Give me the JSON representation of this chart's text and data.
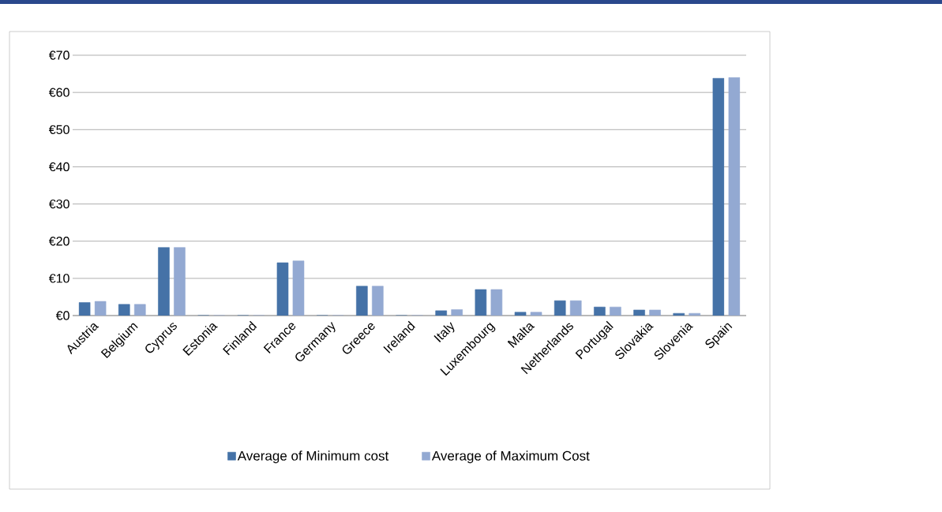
{
  "chart_data": {
    "type": "bar",
    "categories": [
      "Austria",
      "Belgium",
      "Cyprus",
      "Estonia",
      "Finland",
      "France",
      "Germany",
      "Greece",
      "Ireland",
      "Italy",
      "Luxembourg",
      "Malta",
      "Netherlands",
      "Portugal",
      "Slovakia",
      "Slovenia",
      "Spain"
    ],
    "series": [
      {
        "name": "Average of Minimum cost",
        "color": "#4572a7",
        "values": [
          3.5,
          3.0,
          18.3,
          0,
          0,
          14.2,
          0,
          7.9,
          0,
          1.3,
          7.0,
          0.9,
          4.0,
          2.3,
          1.5,
          0.6,
          63.8
        ]
      },
      {
        "name": "Average of  Maximum Cost",
        "color": "#93a9d2",
        "values": [
          3.8,
          3.0,
          18.3,
          0,
          0,
          14.7,
          0,
          7.9,
          0,
          1.6,
          7.0,
          0.9,
          4.0,
          2.3,
          1.5,
          0.6,
          64.0
        ]
      }
    ],
    "ylim": [
      0,
      70
    ],
    "yticks": [
      {
        "value": 0,
        "label": "€0"
      },
      {
        "value": 10,
        "label": "€10"
      },
      {
        "value": 20,
        "label": "€20"
      },
      {
        "value": 30,
        "label": "€30"
      },
      {
        "value": 40,
        "label": "€40"
      },
      {
        "value": 50,
        "label": "€50"
      },
      {
        "value": 60,
        "label": "€60"
      },
      {
        "value": 70,
        "label": "€70"
      }
    ],
    "grid": "y",
    "legend": "bottom"
  }
}
